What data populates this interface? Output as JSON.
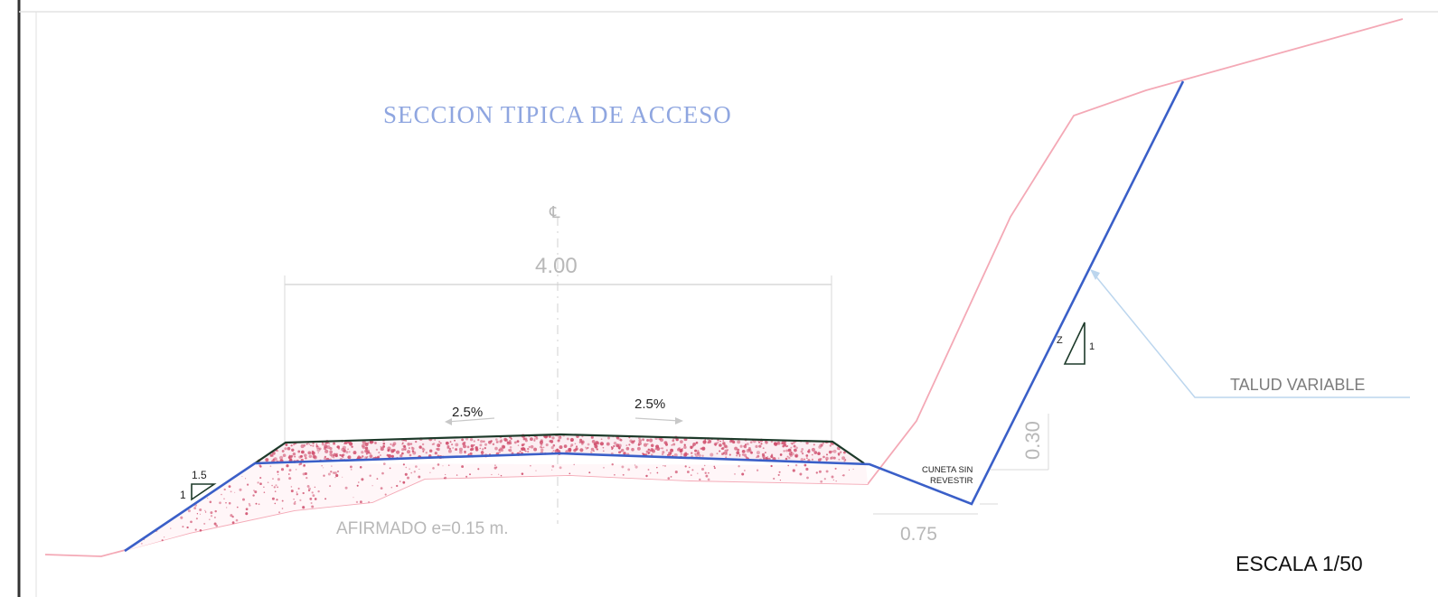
{
  "drawing": {
    "title": "SECCION TIPICA DE ACCESO",
    "centerline_symbol": "℄",
    "road_width": "4.00",
    "slope_left": "2.5%",
    "slope_right": "2.5%",
    "fill_slope_h": "1.5",
    "fill_slope_v": "1",
    "cut_slope_h": "Z",
    "cut_slope_v": "1",
    "pavement_note": "AFIRMADO e=0.15 m.",
    "ditch_label_line1": "CUNETA SIN",
    "ditch_label_line2": "REVESTIR",
    "ditch_depth": "0.30",
    "ditch_width": "0.75",
    "talud_label": "TALUD VARIABLE",
    "scale_label": "ESCALA 1/50"
  },
  "colors": {
    "design_line": "#3a5fc8",
    "terrain_line": "#f4a9b6",
    "surface_line": "#1d3a2a",
    "gravel_dots": "#d0506e",
    "dimension": "#c4c4c4",
    "title": "#8fa6e0"
  }
}
